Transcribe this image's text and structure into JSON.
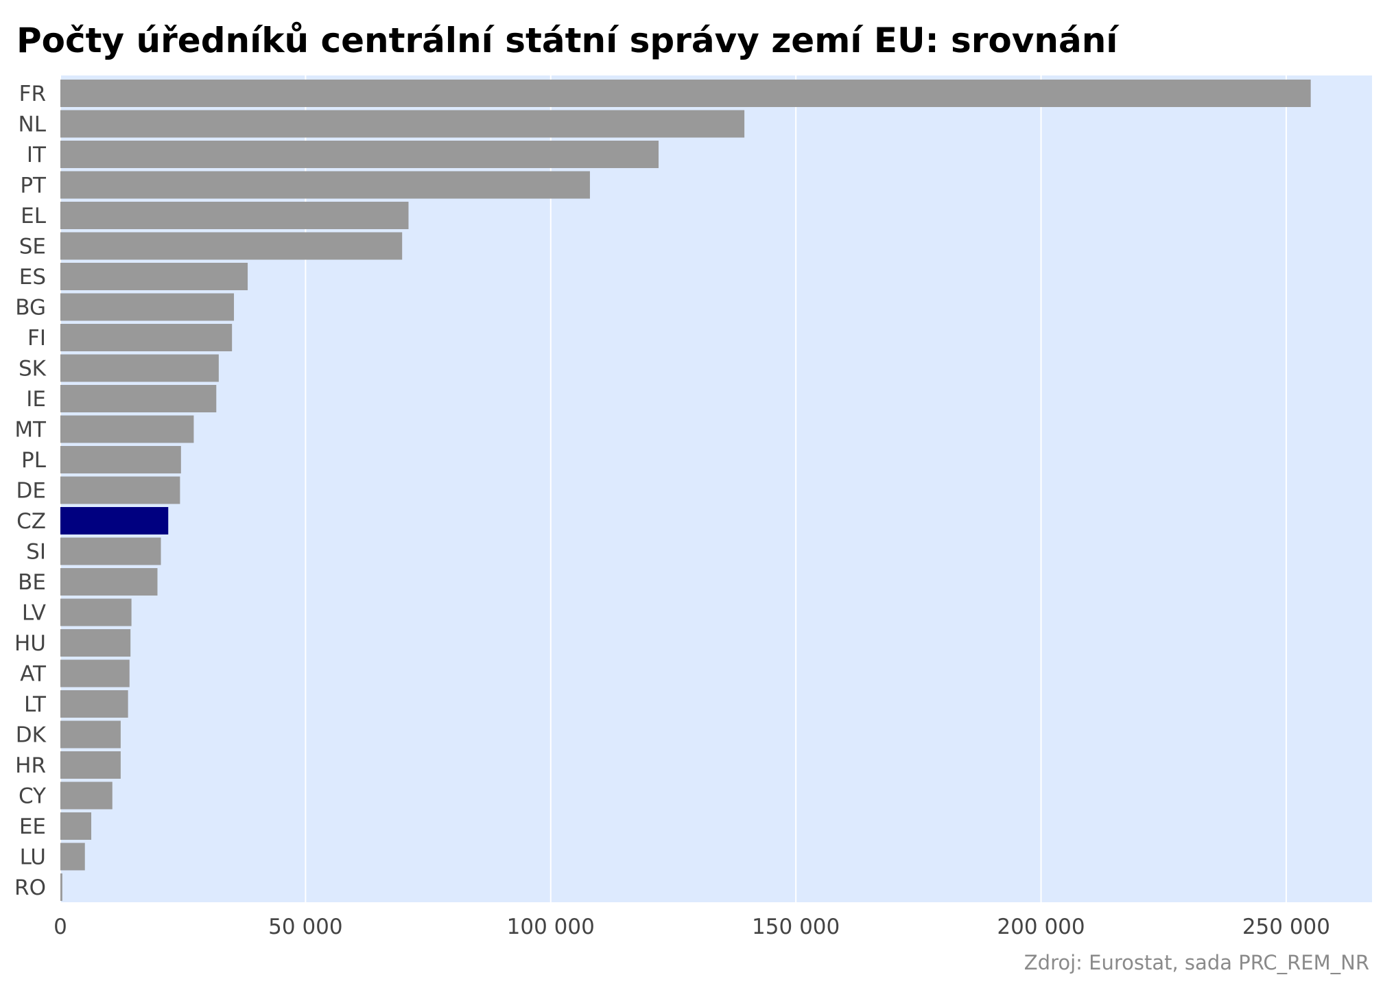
{
  "chart_data": {
    "type": "bar",
    "orientation": "horizontal",
    "title": "Počty úředníků centrální státní správy zemí EU: srovnání",
    "source": "Zdroj: Eurostat, sada PRC_REM_NR",
    "xlabel": "",
    "ylabel": "",
    "categories": [
      "FR",
      "NL",
      "IT",
      "PT",
      "EL",
      "SE",
      "ES",
      "BG",
      "FI",
      "SK",
      "IE",
      "MT",
      "PL",
      "DE",
      "CZ",
      "SI",
      "BE",
      "LV",
      "HU",
      "AT",
      "LT",
      "DK",
      "HR",
      "CY",
      "EE",
      "LU",
      "RO"
    ],
    "values": [
      255000,
      139500,
      122000,
      108000,
      71000,
      69700,
      38200,
      35400,
      35000,
      32300,
      31800,
      27200,
      24600,
      24400,
      22000,
      20500,
      19800,
      14500,
      14300,
      14100,
      13800,
      12300,
      12300,
      10600,
      6300,
      5000,
      400
    ],
    "highlight_category": "CZ",
    "xlim": [
      0,
      267500
    ],
    "xticks": [
      0,
      50000,
      100000,
      150000,
      200000,
      250000
    ],
    "xtick_labels": [
      "0",
      "50 000",
      "100 000",
      "150 000",
      "200 000",
      "250 000"
    ],
    "grid": "vertical",
    "colors": {
      "bar": "#999999",
      "highlight": "#000080",
      "panel": "#ddeafe",
      "grid": "#ffffff"
    }
  }
}
